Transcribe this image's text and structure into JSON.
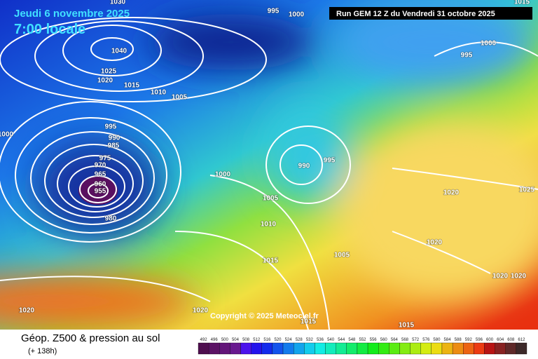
{
  "header": {
    "date": "Jeudi 6 novembre 2025",
    "time": "7:00 locale",
    "run": "Run GEM 12 Z du Vendredi 31 octobre 2025"
  },
  "isobar_labels": [
    "1030",
    "995",
    "1000",
    "1015",
    "1040",
    "1025",
    "1020",
    "1015",
    "1010",
    "1005",
    "1000",
    "995",
    "990",
    "985",
    "975",
    "970",
    "965",
    "960",
    "955",
    "980",
    "1000",
    "990",
    "995",
    "1005",
    "1010",
    "1015",
    "1005",
    "1020",
    "1025",
    "1020",
    "1020",
    "1020",
    "1020",
    "1020",
    "1015",
    "1015",
    "995",
    "1000"
  ],
  "copyright": "Copyright © 2025 Meteociel.fr",
  "footer": {
    "title": "Géop. Z500 & pression au sol",
    "subtitle": "(+ 138h)"
  },
  "colorbar": {
    "labels": [
      "492",
      "496",
      "500",
      "504",
      "508",
      "512",
      "516",
      "520",
      "524",
      "528",
      "532",
      "536",
      "540",
      "544",
      "548",
      "552",
      "556",
      "560",
      "564",
      "568",
      "572",
      "576",
      "580",
      "584",
      "588",
      "592",
      "596",
      "600",
      "604",
      "608",
      "612"
    ]
  }
}
